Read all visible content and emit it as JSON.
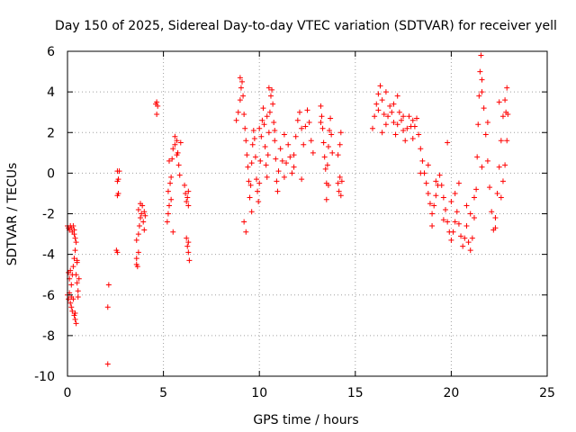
{
  "chart_data": {
    "type": "scatter",
    "title": "Day 150 of 2025, Sidereal Day-to-day VTEC variation (SDTVAR) for receiver yell",
    "xlabel": "GPS time / hours",
    "ylabel": "SDTVAR / TECUs",
    "xlim": [
      0,
      25
    ],
    "ylim": [
      -10,
      6
    ],
    "x_ticks": [
      0,
      5,
      10,
      15,
      20,
      25
    ],
    "y_ticks": [
      -10,
      -8,
      -6,
      -4,
      -2,
      0,
      2,
      4,
      6
    ],
    "x_tick_labels": [
      "0",
      "5",
      "10",
      "15",
      "20",
      "25"
    ],
    "y_tick_labels": [
      "-10",
      "-8",
      "-6",
      "-4",
      "-2",
      "0",
      "2",
      "4",
      "6"
    ],
    "grid": true,
    "marker": "+",
    "series": [
      {
        "name": "SDTVAR",
        "color": "#ff0000",
        "points": [
          [
            0.0,
            -2.6
          ],
          [
            0.05,
            -2.7
          ],
          [
            0.1,
            -2.8
          ],
          [
            0.15,
            -2.6
          ],
          [
            0.2,
            -2.7
          ],
          [
            0.25,
            -2.9
          ],
          [
            0.3,
            -2.6
          ],
          [
            0.35,
            -2.8
          ],
          [
            0.0,
            -6.0
          ],
          [
            0.05,
            -6.2
          ],
          [
            0.1,
            -5.9
          ],
          [
            0.15,
            -6.4
          ],
          [
            0.2,
            -6.6
          ],
          [
            0.25,
            -6.8
          ],
          [
            0.3,
            -6.2
          ],
          [
            0.35,
            -7.0
          ],
          [
            0.4,
            -7.2
          ],
          [
            0.45,
            -7.4
          ],
          [
            0.4,
            -6.9
          ],
          [
            0.1,
            -5.2
          ],
          [
            0.15,
            -4.8
          ],
          [
            0.2,
            -5.5
          ],
          [
            0.25,
            -5.0
          ],
          [
            0.3,
            -4.6
          ],
          [
            0.35,
            -4.2
          ],
          [
            0.4,
            -3.8
          ],
          [
            0.45,
            -3.4
          ],
          [
            0.5,
            -4.4
          ],
          [
            0.5,
            -5.4
          ],
          [
            0.55,
            -5.8
          ],
          [
            0.55,
            -6.1
          ],
          [
            0.45,
            -5.0
          ],
          [
            0.4,
            -3.2
          ],
          [
            0.35,
            -3.0
          ],
          [
            0.2,
            -6.1
          ],
          [
            0.05,
            -4.9
          ],
          [
            0.5,
            -4.3
          ],
          [
            0.6,
            -5.2
          ],
          [
            2.1,
            -9.4
          ],
          [
            2.1,
            -6.6
          ],
          [
            2.15,
            -5.5
          ],
          [
            2.55,
            -3.8
          ],
          [
            2.6,
            -3.9
          ],
          [
            2.6,
            -1.1
          ],
          [
            2.65,
            -1.0
          ],
          [
            2.6,
            -0.4
          ],
          [
            2.65,
            -0.3
          ],
          [
            2.6,
            0.1
          ],
          [
            2.7,
            0.1
          ],
          [
            3.6,
            -4.5
          ],
          [
            3.65,
            -4.6
          ],
          [
            3.6,
            -4.2
          ],
          [
            3.7,
            -3.9
          ],
          [
            3.6,
            -3.3
          ],
          [
            3.7,
            -3.0
          ],
          [
            3.75,
            -2.6
          ],
          [
            3.8,
            -2.2
          ],
          [
            3.85,
            -2.0
          ],
          [
            3.9,
            -1.6
          ],
          [
            3.95,
            -2.4
          ],
          [
            4.0,
            -1.9
          ],
          [
            4.0,
            -2.8
          ],
          [
            3.8,
            -1.5
          ],
          [
            3.7,
            -1.8
          ],
          [
            4.05,
            -2.1
          ],
          [
            4.6,
            3.4
          ],
          [
            4.65,
            3.5
          ],
          [
            4.65,
            2.9
          ],
          [
            4.7,
            3.3
          ],
          [
            5.2,
            -2.4
          ],
          [
            5.25,
            -2.0
          ],
          [
            5.3,
            -1.6
          ],
          [
            5.25,
            -0.9
          ],
          [
            5.35,
            -0.5
          ],
          [
            5.4,
            -0.2
          ],
          [
            5.3,
            0.6
          ],
          [
            5.45,
            0.7
          ],
          [
            5.5,
            1.2
          ],
          [
            5.6,
            1.4
          ],
          [
            5.6,
            1.8
          ],
          [
            5.7,
            1.6
          ],
          [
            5.75,
            1.0
          ],
          [
            5.8,
            0.4
          ],
          [
            5.85,
            -0.1
          ],
          [
            5.5,
            -2.9
          ],
          [
            5.7,
            0.9
          ],
          [
            5.9,
            1.5
          ],
          [
            5.4,
            -1.3
          ],
          [
            6.1,
            -0.6
          ],
          [
            6.15,
            -1.0
          ],
          [
            6.2,
            -1.4
          ],
          [
            6.25,
            -1.2
          ],
          [
            6.3,
            -1.6
          ],
          [
            6.3,
            -0.9
          ],
          [
            6.2,
            -3.2
          ],
          [
            6.25,
            -3.6
          ],
          [
            6.3,
            -3.9
          ],
          [
            6.35,
            -4.3
          ],
          [
            6.3,
            -3.4
          ],
          [
            8.8,
            2.6
          ],
          [
            8.9,
            3.0
          ],
          [
            9.0,
            3.6
          ],
          [
            9.05,
            4.2
          ],
          [
            9.1,
            4.5
          ],
          [
            9.15,
            3.8
          ],
          [
            9.2,
            2.9
          ],
          [
            9.25,
            2.2
          ],
          [
            9.3,
            1.6
          ],
          [
            9.35,
            0.9
          ],
          [
            9.4,
            0.3
          ],
          [
            9.45,
            -0.4
          ],
          [
            9.5,
            -1.2
          ],
          [
            9.55,
            -0.6
          ],
          [
            9.6,
            0.5
          ],
          [
            9.65,
            1.4
          ],
          [
            9.7,
            2.1
          ],
          [
            9.75,
            1.7
          ],
          [
            9.8,
            0.8
          ],
          [
            9.85,
            -0.3
          ],
          [
            9.9,
            -0.9
          ],
          [
            9.95,
            -1.4
          ],
          [
            10.0,
            -0.5
          ],
          [
            10.05,
            0.6
          ],
          [
            10.1,
            1.8
          ],
          [
            10.15,
            2.6
          ],
          [
            10.2,
            3.2
          ],
          [
            10.25,
            2.4
          ],
          [
            10.3,
            1.3
          ],
          [
            10.35,
            0.4
          ],
          [
            10.4,
            -0.2
          ],
          [
            10.45,
            0.9
          ],
          [
            10.5,
            2.0
          ],
          [
            10.55,
            3.0
          ],
          [
            10.6,
            3.8
          ],
          [
            10.65,
            4.1
          ],
          [
            10.7,
            3.4
          ],
          [
            10.75,
            2.5
          ],
          [
            10.8,
            1.6
          ],
          [
            10.85,
            0.7
          ],
          [
            10.9,
            -0.4
          ],
          [
            10.95,
            -0.9
          ],
          [
            11.0,
            0.1
          ],
          [
            11.1,
            1.2
          ],
          [
            11.2,
            0.6
          ],
          [
            11.3,
            -0.2
          ],
          [
            11.4,
            0.5
          ],
          [
            11.5,
            1.4
          ],
          [
            11.6,
            0.8
          ],
          [
            11.7,
            0.0
          ],
          [
            11.8,
            0.9
          ],
          [
            11.9,
            1.8
          ],
          [
            12.0,
            2.6
          ],
          [
            12.1,
            3.0
          ],
          [
            12.2,
            2.2
          ],
          [
            12.3,
            1.4
          ],
          [
            12.4,
            2.3
          ],
          [
            12.5,
            3.1
          ],
          [
            12.6,
            2.5
          ],
          [
            12.7,
            1.6
          ],
          [
            12.8,
            1.0
          ],
          [
            9.2,
            -2.4
          ],
          [
            9.3,
            -2.9
          ],
          [
            9.6,
            -1.9
          ],
          [
            10.0,
            2.2
          ],
          [
            10.4,
            2.8
          ],
          [
            10.8,
            2.1
          ],
          [
            11.3,
            1.9
          ],
          [
            11.8,
            0.3
          ],
          [
            12.2,
            -0.3
          ],
          [
            9.0,
            4.7
          ],
          [
            10.5,
            4.2
          ],
          [
            13.2,
            3.3
          ],
          [
            13.25,
            2.8
          ],
          [
            13.3,
            2.2
          ],
          [
            13.35,
            1.5
          ],
          [
            13.4,
            0.8
          ],
          [
            13.45,
            0.2
          ],
          [
            13.5,
            -0.5
          ],
          [
            13.55,
            0.4
          ],
          [
            13.6,
            1.3
          ],
          [
            13.65,
            2.1
          ],
          [
            13.7,
            2.7
          ],
          [
            13.75,
            1.9
          ],
          [
            13.8,
            1.0
          ],
          [
            13.5,
            -1.3
          ],
          [
            13.6,
            -0.6
          ],
          [
            13.2,
            2.5
          ],
          [
            14.1,
            -0.5
          ],
          [
            14.15,
            -0.9
          ],
          [
            14.2,
            -0.2
          ],
          [
            14.25,
            -1.1
          ],
          [
            14.1,
            0.9
          ],
          [
            14.2,
            1.4
          ],
          [
            14.25,
            2.0
          ],
          [
            14.3,
            -0.4
          ],
          [
            15.9,
            2.2
          ],
          [
            16.0,
            2.8
          ],
          [
            16.1,
            3.4
          ],
          [
            16.2,
            3.9
          ],
          [
            16.3,
            4.3
          ],
          [
            16.4,
            3.6
          ],
          [
            16.5,
            2.9
          ],
          [
            16.6,
            2.4
          ],
          [
            16.7,
            2.8
          ],
          [
            16.8,
            3.3
          ],
          [
            16.9,
            3.0
          ],
          [
            17.0,
            2.5
          ],
          [
            17.1,
            1.9
          ],
          [
            17.2,
            2.4
          ],
          [
            17.3,
            3.0
          ],
          [
            17.4,
            2.6
          ],
          [
            17.5,
            2.1
          ],
          [
            17.6,
            1.6
          ],
          [
            17.7,
            2.2
          ],
          [
            17.8,
            2.8
          ],
          [
            17.9,
            2.3
          ],
          [
            18.0,
            1.7
          ],
          [
            18.1,
            2.3
          ],
          [
            18.2,
            2.7
          ],
          [
            18.3,
            1.9
          ],
          [
            18.4,
            1.2
          ],
          [
            18.5,
            0.6
          ],
          [
            18.6,
            0.0
          ],
          [
            18.7,
            -0.5
          ],
          [
            18.8,
            -1.0
          ],
          [
            18.9,
            -1.5
          ],
          [
            19.0,
            -2.0
          ],
          [
            19.1,
            -1.6
          ],
          [
            19.2,
            -1.1
          ],
          [
            19.3,
            -0.6
          ],
          [
            19.4,
            -0.1
          ],
          [
            19.5,
            -0.6
          ],
          [
            19.6,
            -1.2
          ],
          [
            19.7,
            -1.8
          ],
          [
            19.8,
            -2.4
          ],
          [
            19.9,
            -2.9
          ],
          [
            20.0,
            -3.3
          ],
          [
            20.1,
            -2.9
          ],
          [
            20.2,
            -2.4
          ],
          [
            20.3,
            -1.9
          ],
          [
            20.4,
            -2.5
          ],
          [
            20.5,
            -3.1
          ],
          [
            20.6,
            -3.6
          ],
          [
            20.7,
            -3.2
          ],
          [
            20.8,
            -2.6
          ],
          [
            20.9,
            -3.4
          ],
          [
            21.0,
            -3.8
          ],
          [
            21.1,
            -3.2
          ],
          [
            21.2,
            -2.2
          ],
          [
            21.3,
            -0.8
          ],
          [
            21.35,
            0.8
          ],
          [
            21.4,
            2.4
          ],
          [
            21.45,
            3.8
          ],
          [
            21.5,
            5.0
          ],
          [
            21.55,
            5.8
          ],
          [
            21.6,
            4.6
          ],
          [
            21.7,
            3.2
          ],
          [
            21.8,
            1.9
          ],
          [
            21.9,
            0.6
          ],
          [
            22.0,
            -0.7
          ],
          [
            22.1,
            -1.9
          ],
          [
            22.2,
            -2.8
          ],
          [
            22.3,
            -2.2
          ],
          [
            22.4,
            -1.0
          ],
          [
            22.5,
            0.3
          ],
          [
            22.6,
            1.6
          ],
          [
            22.7,
            2.8
          ],
          [
            22.8,
            3.6
          ],
          [
            22.9,
            4.2
          ],
          [
            22.95,
            2.9
          ],
          [
            22.9,
            1.6
          ],
          [
            22.8,
            0.4
          ],
          [
            22.7,
            -0.4
          ],
          [
            22.6,
            -1.2
          ],
          [
            22.85,
            3.0
          ],
          [
            16.2,
            3.1
          ],
          [
            16.6,
            4.0
          ],
          [
            17.0,
            3.4
          ],
          [
            17.5,
            2.8
          ],
          [
            18.0,
            2.6
          ],
          [
            18.4,
            0.0
          ],
          [
            18.8,
            0.4
          ],
          [
            19.2,
            -0.4
          ],
          [
            19.6,
            -2.3
          ],
          [
            20.0,
            -1.4
          ],
          [
            20.4,
            -0.5
          ],
          [
            20.8,
            -1.6
          ],
          [
            21.2,
            -1.2
          ],
          [
            19.0,
            -2.6
          ],
          [
            19.8,
            1.5
          ],
          [
            20.2,
            -1.0
          ],
          [
            21.0,
            -2.0
          ],
          [
            21.6,
            4.0
          ],
          [
            21.6,
            0.3
          ],
          [
            21.9,
            2.5
          ],
          [
            22.3,
            -2.7
          ],
          [
            22.5,
            3.5
          ],
          [
            17.2,
            3.8
          ],
          [
            16.4,
            2.0
          ]
        ]
      }
    ]
  }
}
